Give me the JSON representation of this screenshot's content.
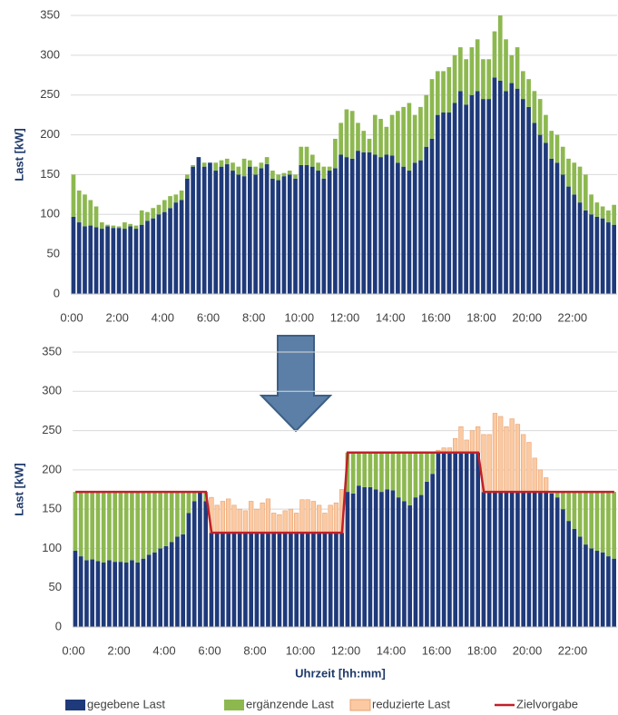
{
  "chart_data": [
    {
      "type": "bar",
      "ylabel": "Last [kW]",
      "categories": [
        "0:00",
        null,
        null,
        null,
        null,
        null,
        null,
        null,
        "2:00",
        null,
        null,
        null,
        null,
        null,
        null,
        null,
        "4:00",
        null,
        null,
        null,
        null,
        null,
        null,
        null,
        "6:00",
        null,
        null,
        null,
        null,
        null,
        null,
        null,
        "8:00",
        null,
        null,
        null,
        null,
        null,
        null,
        null,
        "10:00",
        null,
        null,
        null,
        null,
        null,
        null,
        null,
        "12:00",
        null,
        null,
        null,
        null,
        null,
        null,
        null,
        "14:00",
        null,
        null,
        null,
        null,
        null,
        null,
        null,
        "16:00",
        null,
        null,
        null,
        null,
        null,
        null,
        null,
        "18:00",
        null,
        null,
        null,
        null,
        null,
        null,
        null,
        "20:00",
        null,
        null,
        null,
        null,
        null,
        null,
        null,
        "22:00",
        null,
        null,
        null,
        null,
        null,
        null,
        null
      ],
      "ylim": [
        0,
        350
      ],
      "yticks": [
        0,
        50,
        100,
        150,
        200,
        250,
        300,
        350
      ],
      "grid": true,
      "series": [
        {
          "color": "#1f3a7a",
          "values": [
            97,
            90,
            85,
            86,
            84,
            82,
            85,
            83,
            83,
            82,
            85,
            82,
            87,
            92,
            95,
            100,
            103,
            108,
            115,
            118,
            145,
            160,
            172,
            160,
            165,
            155,
            160,
            163,
            155,
            150,
            148,
            160,
            150,
            158,
            163,
            145,
            143,
            148,
            150,
            145,
            162,
            162,
            160,
            155,
            145,
            155,
            158,
            175,
            172,
            170,
            180,
            178,
            178,
            175,
            172,
            175,
            174,
            165,
            160,
            155,
            165,
            168,
            185,
            195,
            225,
            228,
            228,
            240,
            255,
            238,
            250,
            255,
            245,
            245,
            272,
            268,
            255,
            265,
            258,
            245,
            235,
            215,
            200,
            190,
            170,
            165,
            150,
            135,
            125,
            115,
            105,
            100,
            97,
            95,
            90,
            87
          ]
        },
        {
          "color": "#8db850",
          "values": [
            53,
            40,
            40,
            32,
            26,
            8,
            2,
            3,
            2,
            8,
            3,
            4,
            18,
            11,
            13,
            12,
            15,
            15,
            10,
            12,
            5,
            2,
            0,
            5,
            0,
            10,
            8,
            7,
            10,
            10,
            22,
            8,
            10,
            7,
            9,
            10,
            7,
            4,
            5,
            5,
            23,
            23,
            15,
            10,
            15,
            5,
            37,
            40,
            60,
            60,
            35,
            27,
            17,
            50,
            48,
            35,
            51,
            65,
            75,
            85,
            60,
            67,
            65,
            75,
            55,
            52,
            57,
            60,
            55,
            57,
            60,
            65,
            50,
            50,
            58,
            82,
            65,
            35,
            52,
            35,
            35,
            40,
            45,
            35,
            35,
            35,
            35,
            35,
            40,
            45,
            45,
            25,
            18,
            15,
            15,
            25
          ]
        }
      ]
    },
    {
      "type": "bar",
      "ylabel": "Last [kW]",
      "xlabel": "Uhrzeit [hh:mm]",
      "categories": [
        "0:00",
        null,
        null,
        null,
        null,
        null,
        null,
        null,
        "2:00",
        null,
        null,
        null,
        null,
        null,
        null,
        null,
        "4:00",
        null,
        null,
        null,
        null,
        null,
        null,
        null,
        "6:00",
        null,
        null,
        null,
        null,
        null,
        null,
        null,
        "8:00",
        null,
        null,
        null,
        null,
        null,
        null,
        null,
        "10:00",
        null,
        null,
        null,
        null,
        null,
        null,
        null,
        "12:00",
        null,
        null,
        null,
        null,
        null,
        null,
        null,
        "14:00",
        null,
        null,
        null,
        null,
        null,
        null,
        null,
        "16:00",
        null,
        null,
        null,
        null,
        null,
        null,
        null,
        "18:00",
        null,
        null,
        null,
        null,
        null,
        null,
        null,
        "20:00",
        null,
        null,
        null,
        null,
        null,
        null,
        null,
        "22:00",
        null,
        null,
        null,
        null,
        null,
        null,
        null
      ],
      "ylim": [
        0,
        350
      ],
      "yticks": [
        0,
        50,
        100,
        150,
        200,
        250,
        300,
        350
      ],
      "grid": true,
      "legend": "bottom",
      "series": [
        {
          "name": "gegebene Last",
          "color": "#1f3a7a",
          "values": [
            97,
            90,
            85,
            86,
            84,
            82,
            85,
            83,
            83,
            82,
            85,
            82,
            87,
            92,
            95,
            100,
            103,
            108,
            115,
            118,
            145,
            160,
            172,
            160,
            120,
            120,
            120,
            120,
            120,
            120,
            120,
            120,
            120,
            120,
            120,
            120,
            120,
            120,
            120,
            120,
            120,
            120,
            120,
            120,
            120,
            120,
            120,
            120,
            172,
            170,
            180,
            178,
            178,
            175,
            172,
            175,
            174,
            165,
            160,
            155,
            165,
            168,
            185,
            195,
            222,
            222,
            222,
            222,
            222,
            222,
            222,
            222,
            172,
            172,
            172,
            172,
            172,
            172,
            172,
            172,
            172,
            172,
            172,
            172,
            170,
            165,
            150,
            135,
            125,
            115,
            105,
            100,
            97,
            95,
            90,
            87
          ]
        },
        {
          "name": "ergänzende Last",
          "color": "#8db850",
          "values": [
            75,
            82,
            87,
            86,
            88,
            90,
            87,
            89,
            89,
            90,
            87,
            90,
            85,
            80,
            77,
            72,
            69,
            64,
            57,
            54,
            27,
            12,
            0,
            12,
            0,
            0,
            0,
            0,
            0,
            0,
            0,
            0,
            0,
            0,
            0,
            0,
            0,
            0,
            0,
            0,
            0,
            0,
            0,
            0,
            0,
            0,
            0,
            0,
            50,
            52,
            42,
            44,
            44,
            47,
            50,
            47,
            48,
            57,
            62,
            67,
            57,
            54,
            37,
            27,
            0,
            0,
            0,
            0,
            0,
            0,
            0,
            0,
            0,
            0,
            0,
            0,
            0,
            0,
            0,
            0,
            0,
            0,
            0,
            0,
            2,
            7,
            22,
            37,
            47,
            57,
            67,
            72,
            75,
            77,
            82,
            85
          ]
        },
        {
          "name": "reduzierte Last",
          "color": "#fbcaa2",
          "values": [
            0,
            0,
            0,
            0,
            0,
            0,
            0,
            0,
            0,
            0,
            0,
            0,
            0,
            0,
            0,
            0,
            0,
            0,
            0,
            0,
            0,
            0,
            0,
            0,
            45,
            35,
            40,
            43,
            35,
            30,
            28,
            40,
            30,
            38,
            43,
            25,
            23,
            28,
            30,
            25,
            42,
            42,
            40,
            35,
            25,
            35,
            38,
            55,
            0,
            0,
            0,
            0,
            0,
            0,
            0,
            0,
            0,
            0,
            0,
            0,
            0,
            0,
            0,
            0,
            3,
            6,
            6,
            18,
            33,
            16,
            28,
            33,
            73,
            73,
            100,
            96,
            83,
            93,
            86,
            73,
            63,
            43,
            28,
            18,
            0,
            0,
            0,
            0,
            0,
            0,
            0,
            0,
            0,
            0,
            0,
            0
          ]
        },
        {
          "name": "Zielvorgabe",
          "type": "line",
          "color": "#c0202a",
          "values": [
            172,
            172,
            172,
            172,
            172,
            172,
            172,
            172,
            172,
            172,
            172,
            172,
            172,
            172,
            172,
            172,
            172,
            172,
            172,
            172,
            172,
            172,
            172,
            172,
            120,
            120,
            120,
            120,
            120,
            120,
            120,
            120,
            120,
            120,
            120,
            120,
            120,
            120,
            120,
            120,
            120,
            120,
            120,
            120,
            120,
            120,
            120,
            120,
            222,
            222,
            222,
            222,
            222,
            222,
            222,
            222,
            222,
            222,
            222,
            222,
            222,
            222,
            222,
            222,
            222,
            222,
            222,
            222,
            222,
            222,
            222,
            222,
            172,
            172,
            172,
            172,
            172,
            172,
            172,
            172,
            172,
            172,
            172,
            172,
            172,
            172,
            172,
            172,
            172,
            172,
            172,
            172,
            172,
            172,
            172,
            172
          ]
        }
      ]
    }
  ]
}
